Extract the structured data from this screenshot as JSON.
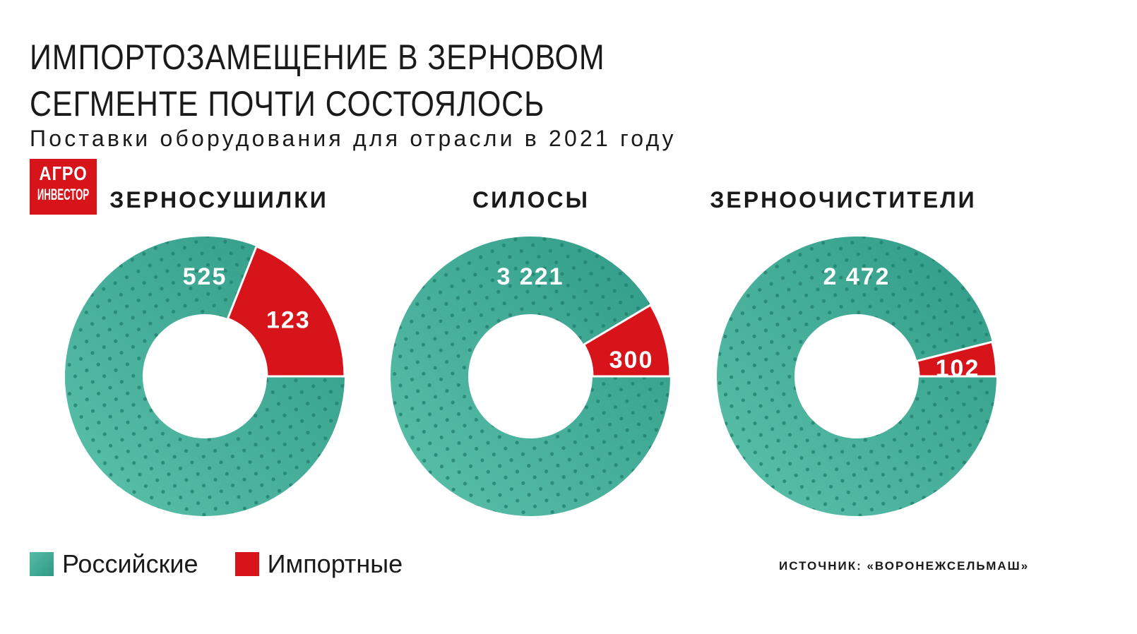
{
  "header": {
    "title_line1": "ИМПОРТОЗАМЕЩЕНИЕ В ЗЕРНОВОМ",
    "title_line2": "СЕГМЕНТЕ ПОЧТИ СОСТОЯЛОСЬ",
    "subtitle": "Поставки оборудования для отрасли в 2021 году"
  },
  "logo": {
    "line1": "АГРО",
    "line2": "ИНВЕСТОР"
  },
  "legend": {
    "russian": "Российские",
    "import": "Импортные"
  },
  "source": "ИСТОЧНИК: «ВОРОНЕЖСЕЛЬМАШ»",
  "colors": {
    "russian": "#3aa891",
    "russian_dark": "#2f9a86",
    "import": "#d7141a",
    "dots": "#1f7f6c"
  },
  "chart_data": [
    {
      "type": "pie",
      "title": "ЗЕРНОСУШИЛКИ",
      "slices": [
        {
          "name": "Российские",
          "value": 525,
          "label": "525"
        },
        {
          "name": "Импортные",
          "value": 123,
          "label": "123"
        }
      ]
    },
    {
      "type": "pie",
      "title": "СИЛОСЫ",
      "slices": [
        {
          "name": "Российские",
          "value": 3221,
          "label": "3 221"
        },
        {
          "name": "Импортные",
          "value": 300,
          "label": "300"
        }
      ]
    },
    {
      "type": "pie",
      "title": "ЗЕРНООЧИСТИТЕЛИ",
      "slices": [
        {
          "name": "Российские",
          "value": 2472,
          "label": "2 472"
        },
        {
          "name": "Импортные",
          "value": 102,
          "label": "102"
        }
      ]
    }
  ]
}
